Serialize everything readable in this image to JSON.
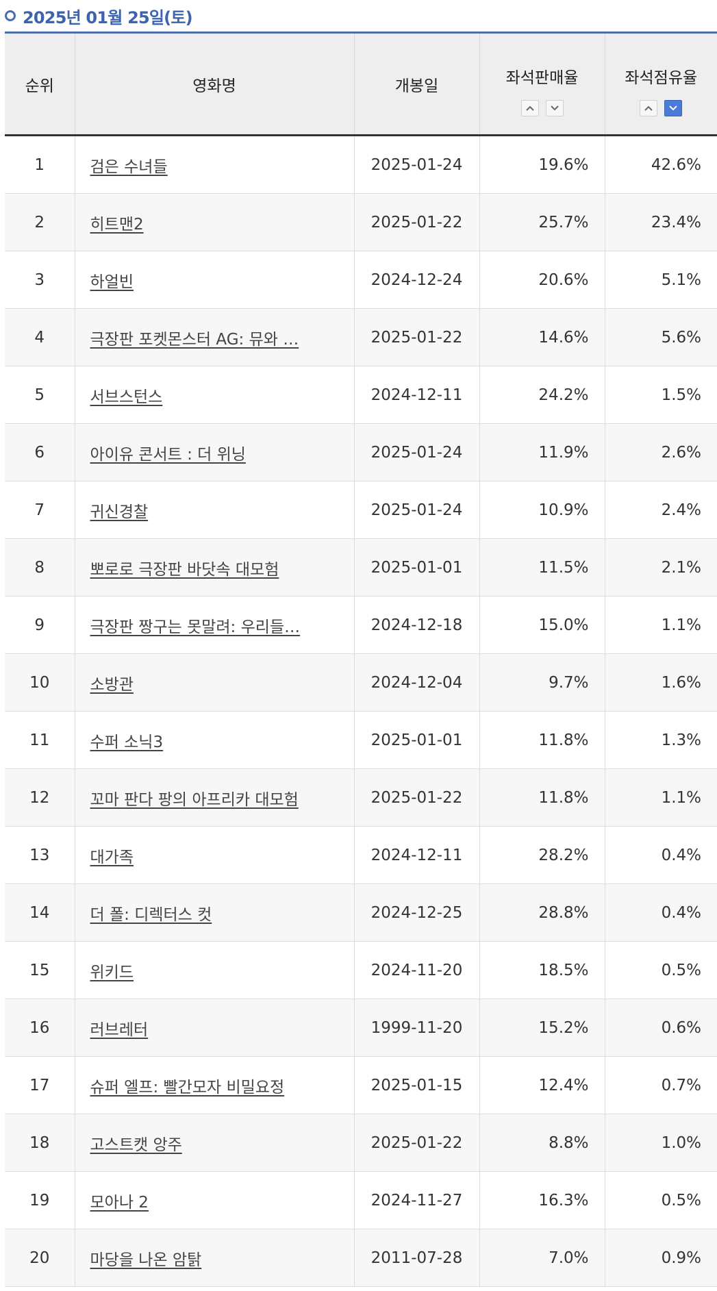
{
  "header": {
    "date_title": "2025년 01월 25일(토)"
  },
  "table": {
    "columns": {
      "rank": "순위",
      "title": "영화명",
      "release": "개봉일",
      "seat_sales": "좌석판매율",
      "seat_share": "좌석점유율"
    },
    "rows": [
      {
        "rank": "1",
        "title": "검은 수녀들",
        "release": "2025-01-24",
        "seat_sales": "19.6%",
        "seat_share": "42.6%"
      },
      {
        "rank": "2",
        "title": "히트맨2",
        "release": "2025-01-22",
        "seat_sales": "25.7%",
        "seat_share": "23.4%"
      },
      {
        "rank": "3",
        "title": "하얼빈",
        "release": "2024-12-24",
        "seat_sales": "20.6%",
        "seat_share": "5.1%"
      },
      {
        "rank": "4",
        "title": "극장판 포켓몬스터 AG: 뮤와 …",
        "release": "2025-01-22",
        "seat_sales": "14.6%",
        "seat_share": "5.6%"
      },
      {
        "rank": "5",
        "title": "서브스턴스",
        "release": "2024-12-11",
        "seat_sales": "24.2%",
        "seat_share": "1.5%"
      },
      {
        "rank": "6",
        "title": "아이유 콘서트 : 더 위닝",
        "release": "2025-01-24",
        "seat_sales": "11.9%",
        "seat_share": "2.6%"
      },
      {
        "rank": "7",
        "title": "귀신경찰",
        "release": "2025-01-24",
        "seat_sales": "10.9%",
        "seat_share": "2.4%"
      },
      {
        "rank": "8",
        "title": "뽀로로 극장판 바닷속 대모험",
        "release": "2025-01-01",
        "seat_sales": "11.5%",
        "seat_share": "2.1%"
      },
      {
        "rank": "9",
        "title": "극장판 짱구는 못말려: 우리들…",
        "release": "2024-12-18",
        "seat_sales": "15.0%",
        "seat_share": "1.1%"
      },
      {
        "rank": "10",
        "title": "소방관",
        "release": "2024-12-04",
        "seat_sales": "9.7%",
        "seat_share": "1.6%"
      },
      {
        "rank": "11",
        "title": "수퍼 소닉3",
        "release": "2025-01-01",
        "seat_sales": "11.8%",
        "seat_share": "1.3%"
      },
      {
        "rank": "12",
        "title": "꼬마 판다 팡의 아프리카 대모험",
        "release": "2025-01-22",
        "seat_sales": "11.8%",
        "seat_share": "1.1%"
      },
      {
        "rank": "13",
        "title": "대가족",
        "release": "2024-12-11",
        "seat_sales": "28.2%",
        "seat_share": "0.4%"
      },
      {
        "rank": "14",
        "title": "더 폴: 디렉터스 컷",
        "release": "2024-12-25",
        "seat_sales": "28.8%",
        "seat_share": "0.4%"
      },
      {
        "rank": "15",
        "title": "위키드",
        "release": "2024-11-20",
        "seat_sales": "18.5%",
        "seat_share": "0.5%"
      },
      {
        "rank": "16",
        "title": "러브레터",
        "release": "1999-11-20",
        "seat_sales": "15.2%",
        "seat_share": "0.6%"
      },
      {
        "rank": "17",
        "title": "슈퍼 엘프: 빨간모자 비밀요정",
        "release": "2025-01-15",
        "seat_sales": "12.4%",
        "seat_share": "0.7%"
      },
      {
        "rank": "18",
        "title": "고스트캣 앙주",
        "release": "2025-01-22",
        "seat_sales": "8.8%",
        "seat_share": "1.0%"
      },
      {
        "rank": "19",
        "title": "모아나 2",
        "release": "2024-11-27",
        "seat_sales": "16.3%",
        "seat_share": "0.5%"
      },
      {
        "rank": "20",
        "title": "마당을 나온 암탉",
        "release": "2011-07-28",
        "seat_sales": "7.0%",
        "seat_share": "0.9%"
      }
    ]
  },
  "sort_icons": {
    "ascending": "chevron-up-icon",
    "descending": "chevron-down-icon",
    "active": "seat-share-descending"
  },
  "colors": {
    "accent": "#3d63b0",
    "active_sort": "#4a7bd6",
    "header_bg": "#eeeeee",
    "stripe_bg": "#f7f7f7"
  }
}
